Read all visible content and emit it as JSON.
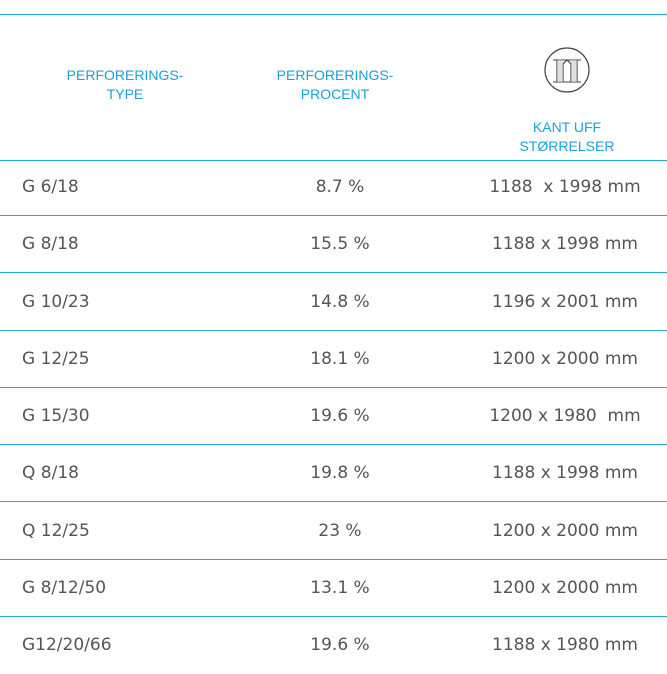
{
  "table": {
    "headers": [
      [
        "PERFORERINGS-",
        "TYPE"
      ],
      [
        "PERFORERINGS-",
        "PROCENT"
      ],
      [
        "KANT UFF",
        "STØRRELSER"
      ]
    ],
    "rows": [
      [
        "G 6/18",
        "8.7 %",
        "1188  x 1998 mm"
      ],
      [
        "G 8/18",
        "15.5 %",
        "1188 x 1998 mm"
      ],
      [
        "G 10/23",
        "14.8 %",
        "1196 x 2001 mm"
      ],
      [
        "G 12/25",
        "18.1 %",
        "1200 x 2000 mm"
      ],
      [
        "G 15/30",
        "19.6 %",
        "1200 x 1980  mm"
      ],
      [
        "Q 8/18",
        "19.8 %",
        "1188 x 1998 mm"
      ],
      [
        "Q 12/25",
        "23 %",
        "1200 x 2000 mm"
      ],
      [
        "G 8/12/50",
        "13.1 %",
        "1200 x 2000 mm"
      ],
      [
        "G12/20/66",
        "19.6 %",
        "1188 x 1980 mm"
      ]
    ]
  }
}
